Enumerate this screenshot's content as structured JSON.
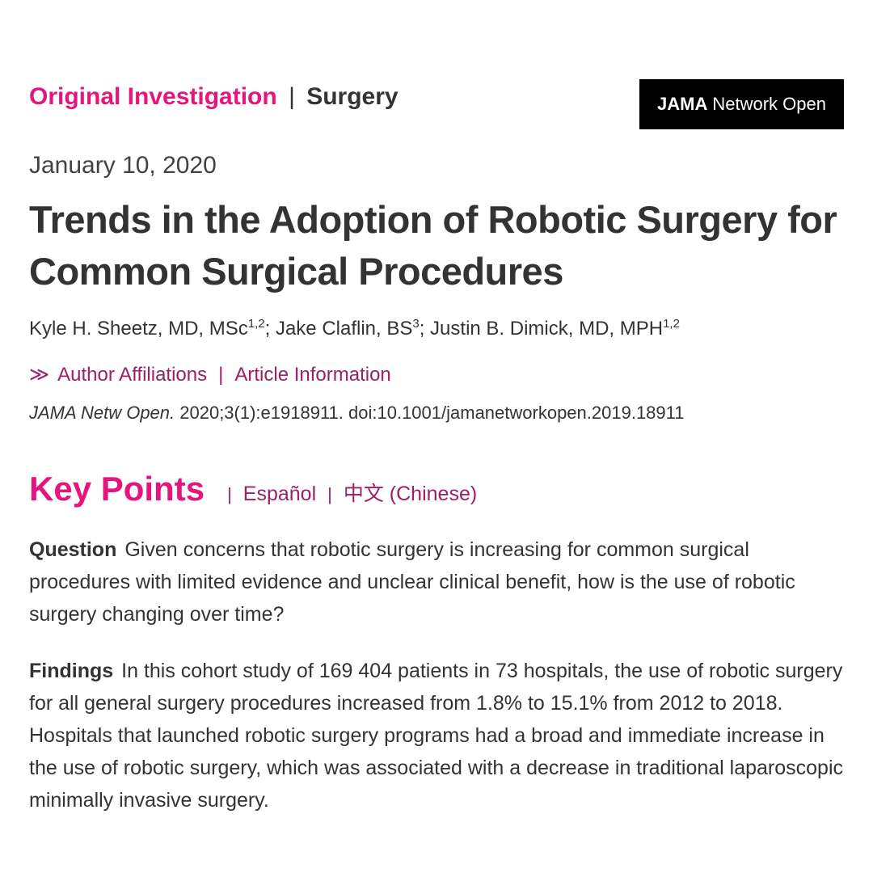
{
  "kicker": {
    "category": "Original Investigation",
    "separator": "|",
    "topic": "Surgery"
  },
  "badge": {
    "brand_bold": "JAMA",
    "brand_rest": "Network Open"
  },
  "date": "January 10, 2020",
  "title": "Trends in the Adoption of Robotic Surgery for Common Surgical Procedures",
  "authors": [
    {
      "name": "Kyle H. Sheetz, MD, MSc",
      "sup": "1,2",
      "after": "; "
    },
    {
      "name": "Jake Claflin, BS",
      "sup": "3",
      "after": "; "
    },
    {
      "name": "Justin B. Dimick, MD, MPH",
      "sup": "1,2",
      "after": ""
    }
  ],
  "affiliations": {
    "chevron": "≫",
    "author_affiliations_label": "Author Affiliations",
    "separator": "|",
    "article_information_label": "Article Information"
  },
  "citation": {
    "journal": "JAMA Netw Open.",
    "rest": " 2020;3(1):e1918911. doi:10.1001/jamanetworkopen.2019.18911"
  },
  "key_points": {
    "heading": "Key Points",
    "separator": "|",
    "espanol_label": "Español",
    "chinese_label": "中文 (Chinese)",
    "question_label": "Question",
    "question_text": "Given concerns that robotic surgery is increasing for common surgical procedures with limited evidence and unclear clinical benefit, how is the use of robotic surgery changing over time?",
    "findings_label": "Findings",
    "findings_text": "In this cohort study of 169 404 patients in 73 hospitals, the use of robotic surgery for all general surgery procedures increased from 1.8% to 15.1% from 2012 to 2018. Hospitals that launched robotic surgery programs had a broad and immediate increase in the use of robotic surgery, which was associated with a decrease in traditional laparoscopic minimally invasive surgery."
  },
  "colors": {
    "accent_pink": "#e6157e",
    "link_maroon": "#9b2164",
    "text_dark": "#333333",
    "badge_bg": "#000000"
  }
}
